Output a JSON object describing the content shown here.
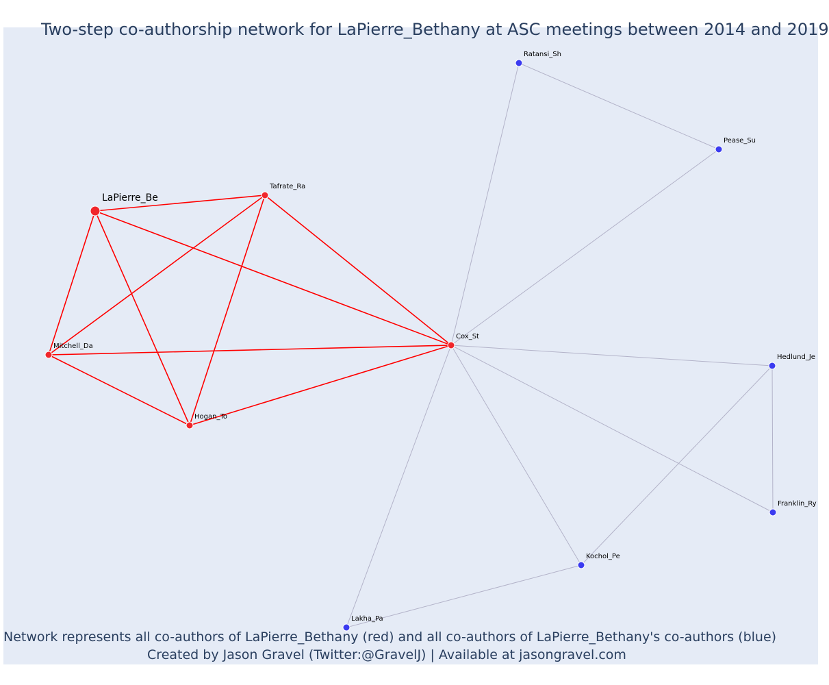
{
  "title": "Two-step co-authorship network for LaPierre_Bethany at ASC meetings between 2014 and 2019",
  "footer": {
    "line1": "Network represents all co-authors of LaPierre_Bethany (red) and all co-authors of LaPierre_Bethany's co-authors (blue)",
    "line2": "Created by Jason Gravel (Twitter:@GravelJ) | Available at jasongravel.com"
  },
  "colors": {
    "primary_node": "#f0262b",
    "secondary_node": "#3b3bf0",
    "primary_edge": "#ff0000",
    "secondary_edge": "#b3b3c9",
    "background": "#e5ebf6"
  },
  "nodes": [
    {
      "id": "LaPierre_Be",
      "label": "LaPierre_Be",
      "group": "focal"
    },
    {
      "id": "Tafrate_Ra",
      "label": "Tafrate_Ra",
      "group": "coauthor"
    },
    {
      "id": "Mitchell_Da",
      "label": "Mitchell_Da",
      "group": "coauthor"
    },
    {
      "id": "Hogan_To",
      "label": "Hogan_To",
      "group": "coauthor"
    },
    {
      "id": "Cox_St",
      "label": "Cox_St",
      "group": "coauthor"
    },
    {
      "id": "Ratansi_Sh",
      "label": "Ratansi_Sh",
      "group": "second"
    },
    {
      "id": "Pease_Su",
      "label": "Pease_Su",
      "group": "second"
    },
    {
      "id": "Hedlund_Je",
      "label": "Hedlund_Je",
      "group": "second"
    },
    {
      "id": "Franklin_Ry",
      "label": "Franklin_Ry",
      "group": "second"
    },
    {
      "id": "Kochol_Pe",
      "label": "Kochol_Pe",
      "group": "second"
    },
    {
      "id": "Lakha_Pa",
      "label": "Lakha_Pa",
      "group": "second"
    }
  ],
  "edges": [
    {
      "source": "LaPierre_Be",
      "target": "Tafrate_Ra",
      "type": "primary"
    },
    {
      "source": "LaPierre_Be",
      "target": "Mitchell_Da",
      "type": "primary"
    },
    {
      "source": "LaPierre_Be",
      "target": "Hogan_To",
      "type": "primary"
    },
    {
      "source": "LaPierre_Be",
      "target": "Cox_St",
      "type": "primary"
    },
    {
      "source": "Tafrate_Ra",
      "target": "Mitchell_Da",
      "type": "primary"
    },
    {
      "source": "Tafrate_Ra",
      "target": "Hogan_To",
      "type": "primary"
    },
    {
      "source": "Tafrate_Ra",
      "target": "Cox_St",
      "type": "primary"
    },
    {
      "source": "Mitchell_Da",
      "target": "Hogan_To",
      "type": "primary"
    },
    {
      "source": "Mitchell_Da",
      "target": "Cox_St",
      "type": "primary"
    },
    {
      "source": "Hogan_To",
      "target": "Cox_St",
      "type": "primary"
    },
    {
      "source": "Cox_St",
      "target": "Ratansi_Sh",
      "type": "secondary"
    },
    {
      "source": "Cox_St",
      "target": "Pease_Su",
      "type": "secondary"
    },
    {
      "source": "Cox_St",
      "target": "Hedlund_Je",
      "type": "secondary"
    },
    {
      "source": "Cox_St",
      "target": "Franklin_Ry",
      "type": "secondary"
    },
    {
      "source": "Cox_St",
      "target": "Kochol_Pe",
      "type": "secondary"
    },
    {
      "source": "Cox_St",
      "target": "Lakha_Pa",
      "type": "secondary"
    },
    {
      "source": "Ratansi_Sh",
      "target": "Pease_Su",
      "type": "secondary"
    },
    {
      "source": "Hedlund_Je",
      "target": "Franklin_Ry",
      "type": "secondary"
    },
    {
      "source": "Hedlund_Je",
      "target": "Kochol_Pe",
      "type": "secondary"
    },
    {
      "source": "Kochol_Pe",
      "target": "Lakha_Pa",
      "type": "secondary"
    }
  ]
}
